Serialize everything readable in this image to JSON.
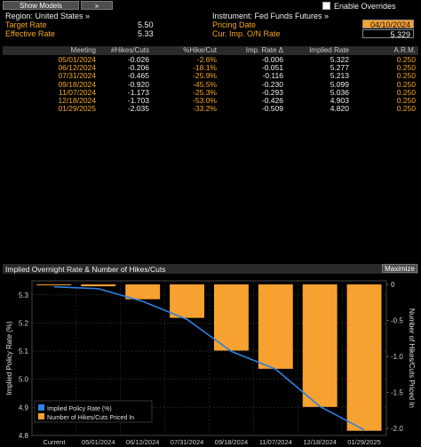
{
  "toolbar": {
    "show_models": "Show Models",
    "arrows": "»",
    "enable_overrides": "Enable Overrides"
  },
  "info": {
    "region": "Region: United States »",
    "instrument": "Instrument: Fed Funds Futures »",
    "target_rate_label": "Target Rate",
    "target_rate_value": "5.50",
    "effective_rate_label": "Effective Rate",
    "effective_rate_value": "5.33",
    "pricing_date_label": "Pricing Date",
    "pricing_date_value": "04/10/2024",
    "cur_imp_label": "Cur. Imp. O/N Rate",
    "cur_imp_value": "5.329"
  },
  "table": {
    "headers": [
      "Meeting",
      "#Hikes/Cuts",
      "%Hike/Cut",
      "Imp. Rate Δ",
      "Implied Rate",
      "A.R.M."
    ],
    "rows": [
      [
        "05/01/2024",
        "-0.026",
        "-2.6%",
        "-0.006",
        "5.322",
        "0.250"
      ],
      [
        "06/12/2024",
        "-0.206",
        "-18.1%",
        "-0.051",
        "5.277",
        "0.250"
      ],
      [
        "07/31/2024",
        "-0.465",
        "-25.9%",
        "-0.116",
        "5.213",
        "0.250"
      ],
      [
        "09/18/2024",
        "-0.920",
        "-45.5%",
        "-0.230",
        "5.099",
        "0.250"
      ],
      [
        "11/07/2024",
        "-1.173",
        "-25.3%",
        "-0.293",
        "5.036",
        "0.250"
      ],
      [
        "12/18/2024",
        "-1.703",
        "-53.0%",
        "-0.426",
        "4.903",
        "0.250"
      ],
      [
        "01/29/2025",
        "-2.035",
        "-33.2%",
        "-0.509",
        "4.820",
        "0.250"
      ]
    ]
  },
  "chart_panel": {
    "title": "Implied Overnight Rate & Number of Hikes/Cuts",
    "maximize": "Maximize"
  },
  "chart_data": {
    "type": "bar",
    "categories": [
      "Current",
      "05/01/2024",
      "06/12/2024",
      "07/31/2024",
      "09/18/2024",
      "11/07/2024",
      "12/18/2024",
      "01/29/2025"
    ],
    "series": [
      {
        "name": "Implied Policy Rate (%)",
        "type": "line",
        "axis": "left",
        "values": [
          5.329,
          5.322,
          5.277,
          5.213,
          5.099,
          5.036,
          4.903,
          4.82
        ]
      },
      {
        "name": "Number of Hikes/Cuts Priced In",
        "type": "bar",
        "axis": "right",
        "values": [
          0,
          -0.026,
          -0.206,
          -0.465,
          -0.92,
          -1.173,
          -1.703,
          -2.035
        ]
      }
    ],
    "ylabel": "Implied Policy Rate (%)",
    "y2label": "Number of Hikes/Cuts Priced In",
    "ylim": [
      4.8,
      5.35
    ],
    "y2lim": [
      -2.1,
      0.05
    ],
    "yticks": [
      "5.3",
      "5.2",
      "5.1",
      "5.0",
      "4.9",
      "4.8"
    ],
    "y2ticks": [
      "0",
      "-0.5",
      "-1.0",
      "-1.5",
      "-2.0"
    ],
    "legend": "bottom-left",
    "colors": {
      "line": "#2f7fe0",
      "bar": "#f7a130",
      "grid": "#3a3a3a"
    }
  }
}
